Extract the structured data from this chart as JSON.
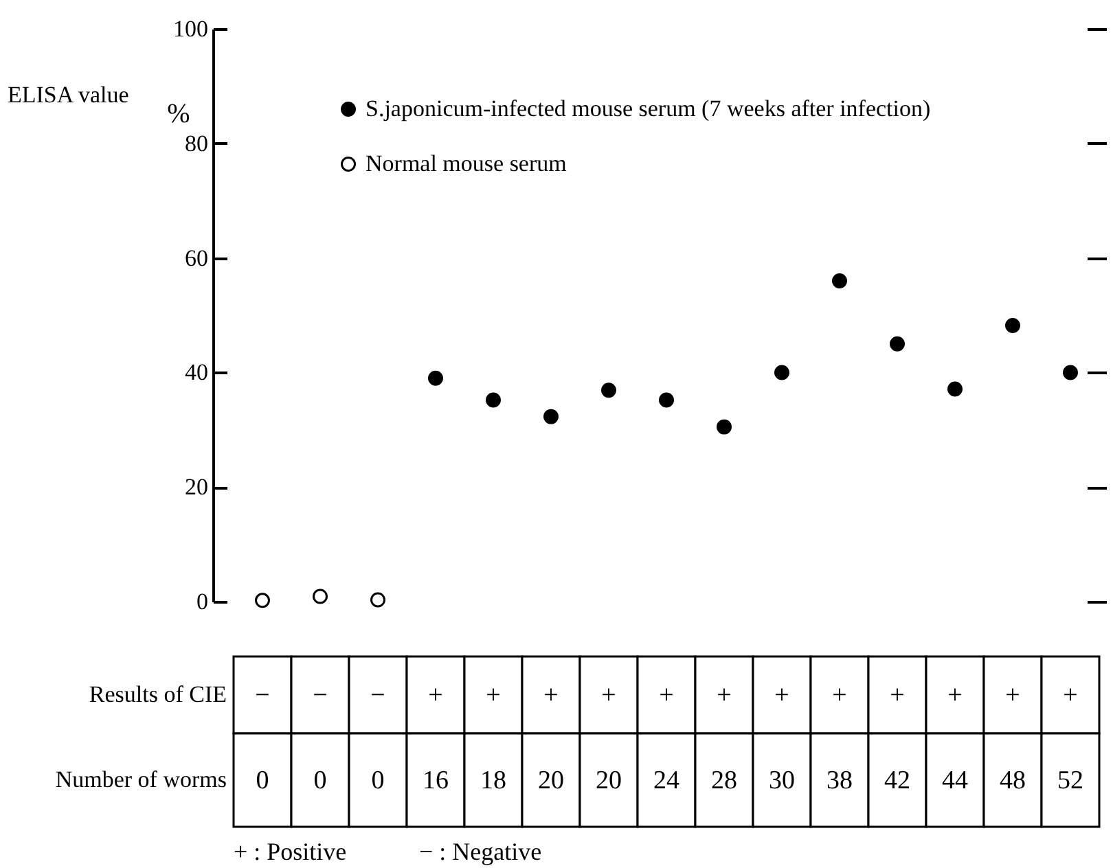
{
  "chart_data": {
    "type": "scatter",
    "categories": [
      "0",
      "0",
      "0",
      "16",
      "18",
      "20",
      "20",
      "24",
      "28",
      "30",
      "38",
      "42",
      "44",
      "48",
      "52"
    ],
    "series": [
      {
        "name": "S.japonicum-infected mouse serum (7 weeks after infection)",
        "color": "#000000",
        "values": [
          null,
          null,
          null,
          39,
          35.2,
          32.3,
          36.9,
          35.2,
          30.5,
          40,
          56,
          45,
          37.1,
          48.2,
          40
        ]
      },
      {
        "name": "Normal mouse serum",
        "color": "#ffffff",
        "values": [
          0.2,
          0.9,
          0.3,
          null,
          null,
          null,
          null,
          null,
          null,
          null,
          null,
          null,
          null,
          null,
          null
        ]
      }
    ],
    "xlabel": "Number of worms",
    "ylabel": "ELISA value",
    "ylim": [
      0,
      100
    ],
    "yticks": [
      0,
      20,
      40,
      60,
      80,
      100
    ],
    "annotations": [
      "%",
      "Results of CIE",
      "−",
      "−",
      "−",
      "+",
      "+",
      "+",
      "+",
      "+",
      "+",
      "+",
      "+",
      "+",
      "+",
      "+",
      "+",
      "+ : Positive",
      "− : Negative"
    ],
    "marker": "circle",
    "legend": "top",
    "grid": false
  }
}
